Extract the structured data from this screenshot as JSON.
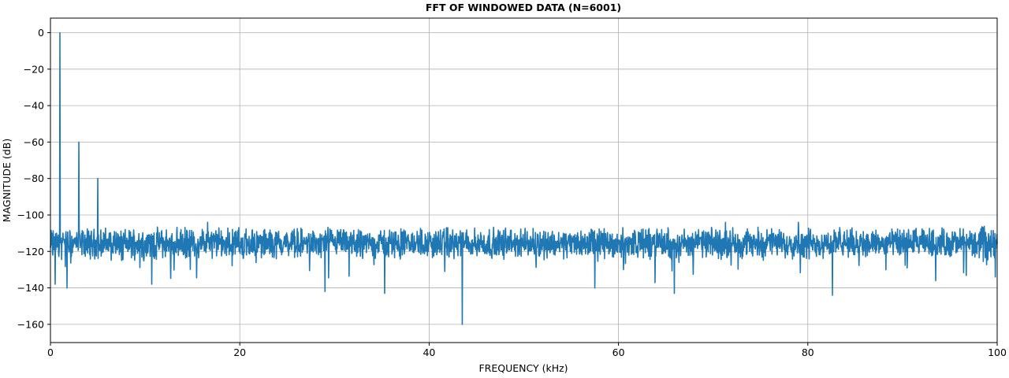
{
  "chart_data": {
    "type": "line",
    "title": "FFT OF WINDOWED DATA (N=6001)",
    "xlabel": "FREQUENCY (kHz)",
    "ylabel": "MAGNITUDE (dB)",
    "xlim": [
      0,
      100
    ],
    "ylim": [
      -170,
      8
    ],
    "xticks": [
      0,
      20,
      40,
      60,
      80,
      100
    ],
    "yticks": [
      0,
      -20,
      -40,
      -60,
      -80,
      -100,
      -120,
      -140,
      -160
    ],
    "grid": true,
    "line_color": "#1f77b4",
    "series": [
      {
        "noise_floor_db": -116,
        "noise_range_db": [
          -125,
          -106
        ],
        "x": [
          0,
          0.25,
          0.5,
          0.75,
          1.0,
          1.25,
          1.5,
          1.75,
          2.0,
          2.5,
          3.0,
          3.25,
          3.5,
          4.0,
          4.5,
          5.0,
          5.25,
          5.5,
          6,
          7,
          8,
          9,
          10,
          10.7,
          12,
          14,
          16,
          16.6,
          18,
          20,
          22,
          24,
          26,
          28,
          29.0,
          30,
          32,
          34,
          35.3,
          36,
          38,
          40,
          42,
          43.5,
          44,
          46,
          48,
          50,
          52,
          54,
          56,
          57.5,
          58,
          60,
          62,
          64,
          65.9,
          66,
          68,
          70,
          71.3,
          72,
          74,
          76,
          78,
          79.0,
          80,
          82,
          82.6,
          84,
          86,
          88,
          90,
          92,
          94,
          96,
          98,
          99.8,
          100
        ],
        "y": [
          -118,
          -122,
          -138,
          -112,
          0,
          -114,
          -116,
          -140,
          -118,
          -114,
          -60,
          -116,
          -117,
          -118,
          -116,
          -80,
          -117,
          -118,
          -116,
          -117,
          -118,
          -115,
          -117,
          -138,
          -116,
          -117,
          -116,
          -104,
          -116,
          -117,
          -118,
          -116,
          -117,
          -118,
          -142,
          -117,
          -116,
          -118,
          -143,
          -116,
          -117,
          -116,
          -118,
          -160,
          -117,
          -116,
          -118,
          -116,
          -117,
          -116,
          -118,
          -140,
          -117,
          -116,
          -117,
          -118,
          -143,
          -116,
          -117,
          -116,
          -104,
          -117,
          -118,
          -116,
          -117,
          -104,
          -117,
          -116,
          -144,
          -117,
          -116,
          -118,
          -117,
          -116,
          -118,
          -117,
          -116,
          -134,
          -116
        ]
      }
    ]
  }
}
